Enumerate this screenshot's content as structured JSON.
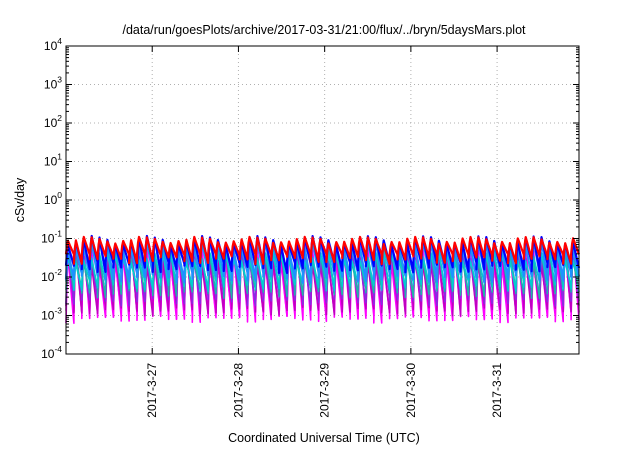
{
  "chart_data": {
    "type": "line",
    "title": "/data/run/goesPlots/archive/2017-03-31/21:00/flux/../bryn/5daysMars.plot",
    "xlabel": "Coordinated Universal Time (UTC)",
    "ylabel": "cSv/day",
    "y_scale": "log",
    "ylim": [
      0.0001,
      10000
    ],
    "y_ticks": [
      {
        "base": "10",
        "exp": "4"
      },
      {
        "base": "10",
        "exp": "3"
      },
      {
        "base": "10",
        "exp": "2"
      },
      {
        "base": "10",
        "exp": "1"
      },
      {
        "base": "10",
        "exp": "0"
      },
      {
        "base": "10",
        "exp": "-1"
      },
      {
        "base": "10",
        "exp": "-2"
      },
      {
        "base": "10",
        "exp": "-3"
      },
      {
        "base": "10",
        "exp": "-4"
      }
    ],
    "x_range_days": [
      0,
      5.95
    ],
    "x_ticks": [
      {
        "label": "2017-3-27",
        "day": 1.0
      },
      {
        "label": "2017-3-28",
        "day": 2.0
      },
      {
        "label": "2017-3-29",
        "day": 3.0
      },
      {
        "label": "2017-3-30",
        "day": 4.0
      },
      {
        "label": "2017-3-31",
        "day": 5.0
      }
    ],
    "grid": true,
    "oscillation": {
      "cycles": 65,
      "peak": 0.12,
      "troughs": [
        0.0009,
        0.0009,
        0.0015
      ]
    },
    "series": [
      {
        "color": "#ff00ff",
        "peak": 0.1,
        "trough": 0.0009
      },
      {
        "color": "#ff00ff",
        "peak": 0.085,
        "trough": 0.0011
      },
      {
        "color": "#c000c0",
        "peak": 0.075,
        "trough": 0.0014
      },
      {
        "color": "#8a2be2",
        "peak": 0.09,
        "trough": 0.0025
      },
      {
        "color": "#20b2aa",
        "peak": 0.06,
        "trough": 0.004
      },
      {
        "color": "#00ced1",
        "peak": 0.05,
        "trough": 0.006
      },
      {
        "color": "#1e90ff",
        "peak": 0.11,
        "trough": 0.01
      },
      {
        "color": "#0000ff",
        "peak": 0.13,
        "trough": 0.018
      },
      {
        "color": "#ff0000",
        "peak": 0.12,
        "trough": 0.03
      }
    ]
  }
}
